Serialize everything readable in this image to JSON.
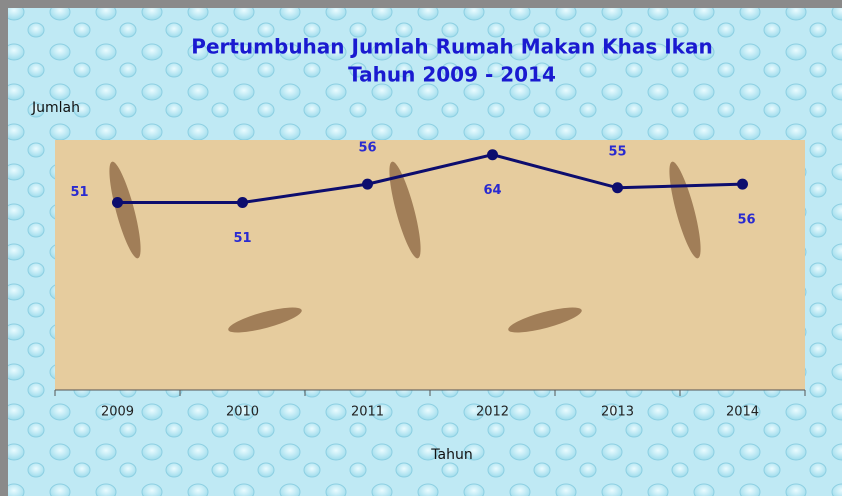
{
  "chart_data": {
    "type": "line",
    "title": "Pertumbuhan Jumlah Rumah Makan Khas Ikan",
    "subtitle": "Tahun 2009 - 2014",
    "y_label": "Jumlah",
    "x_label": "Tahun",
    "categories": [
      "2009",
      "2010",
      "2011",
      "2012",
      "2013",
      "2014"
    ],
    "values": [
      51,
      51,
      56,
      64,
      55,
      56
    ],
    "color": "#0d0d6e",
    "ylim": [
      0,
      68
    ]
  }
}
